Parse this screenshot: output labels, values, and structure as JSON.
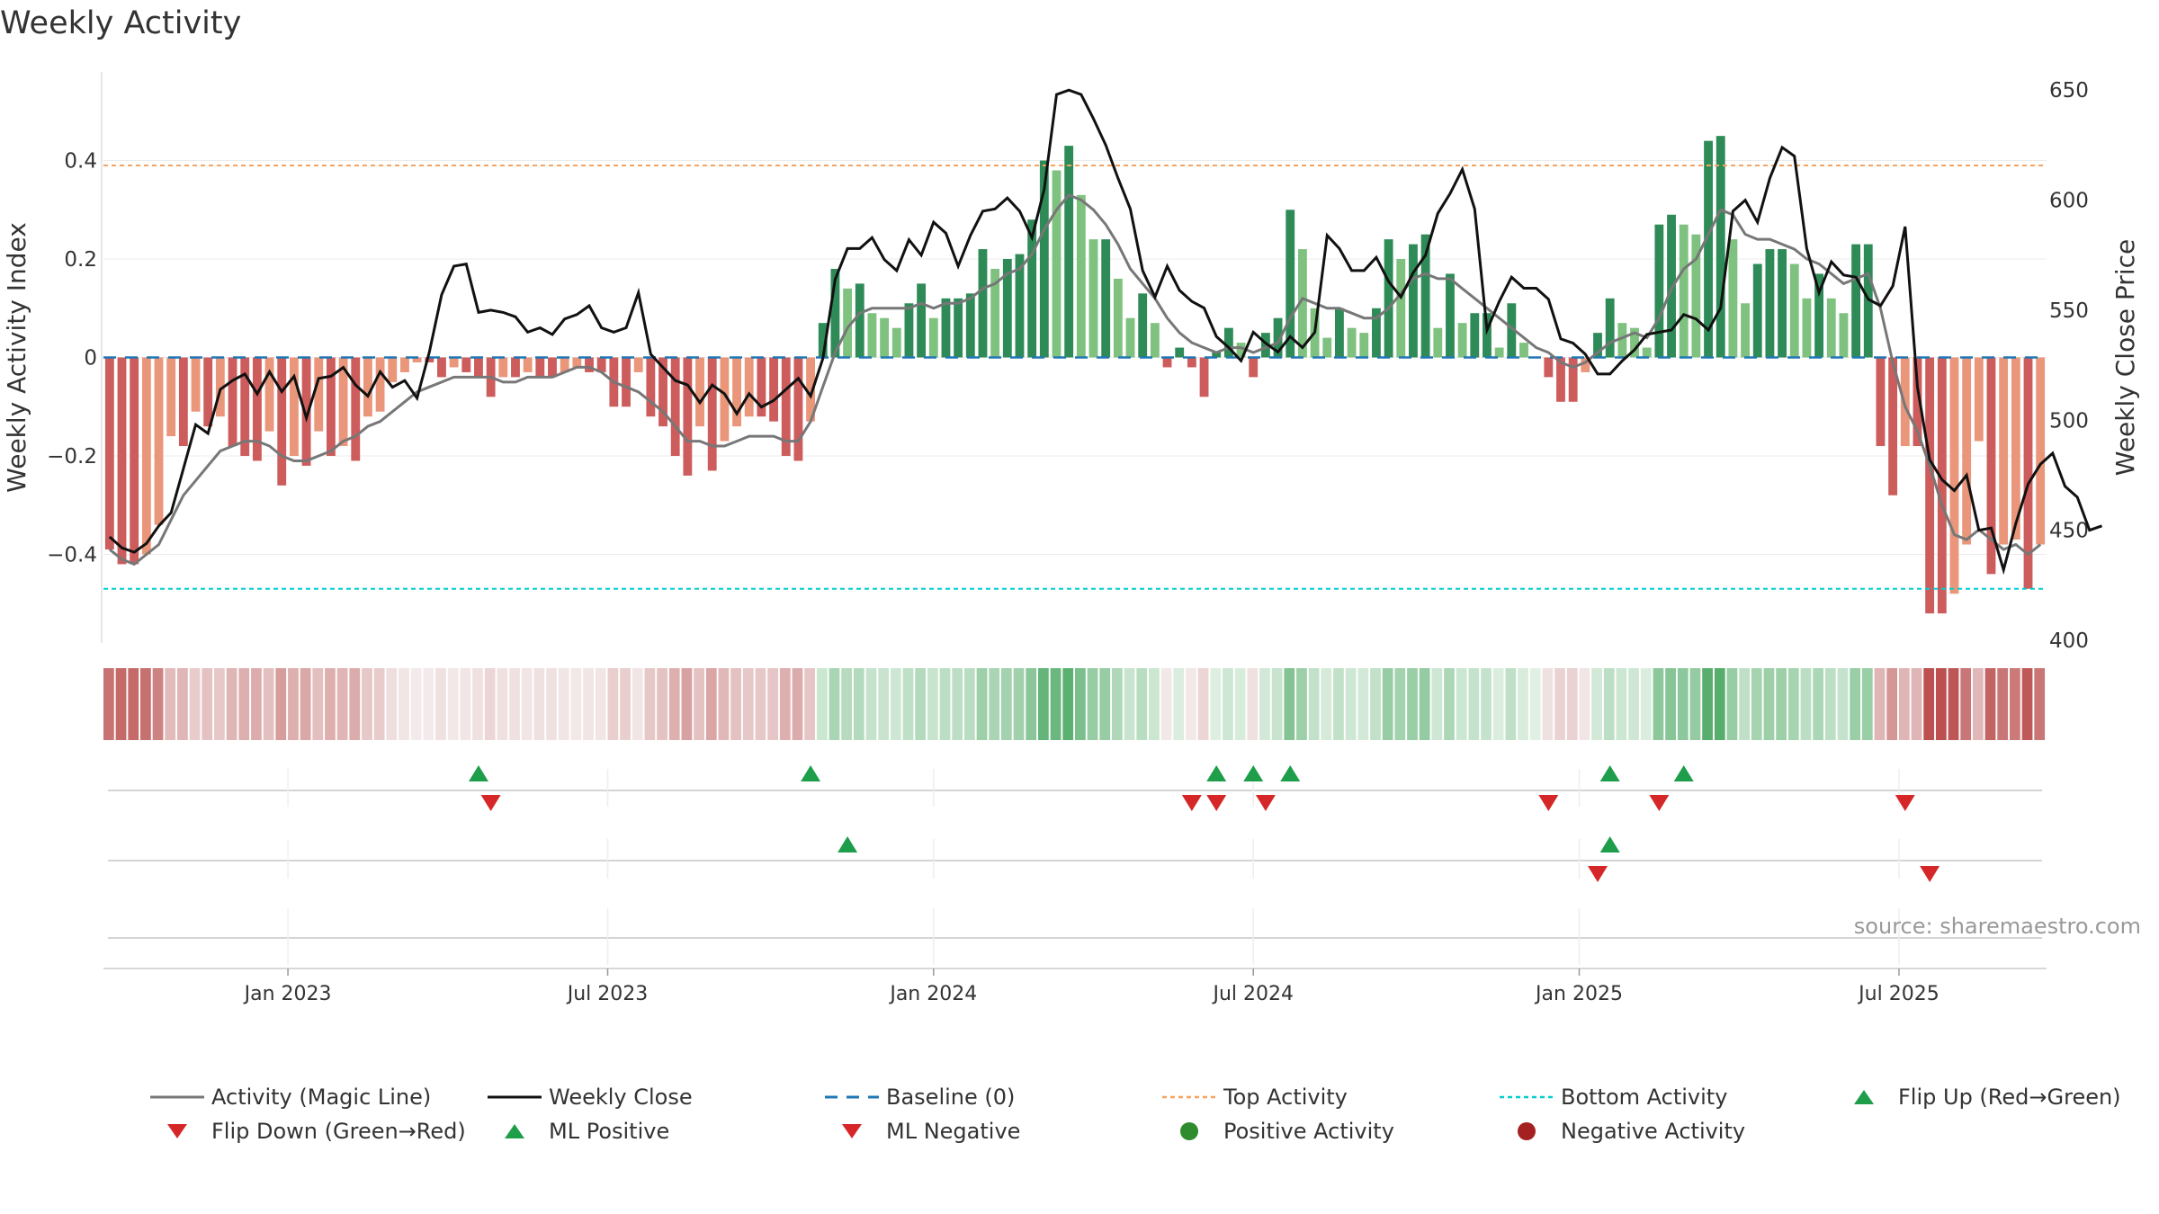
{
  "chart_data": {
    "type": "bar",
    "title": "Weekly Activity",
    "ylabel": "Weekly Activity Index",
    "y2label": "Weekly Close Price",
    "ylim": [
      -0.58,
      0.58
    ],
    "y2lim": [
      400,
      655
    ],
    "y_ticks": [
      {
        "v": -0.4,
        "label": "−0.4"
      },
      {
        "v": -0.2,
        "label": "−0.2"
      },
      {
        "v": 0,
        "label": "0"
      },
      {
        "v": 0.2,
        "label": "0.2"
      },
      {
        "v": 0.4,
        "label": "0.4"
      }
    ],
    "y2_ticks": [
      {
        "v": 400,
        "label": "400"
      },
      {
        "v": 450,
        "label": "450"
      },
      {
        "v": 500,
        "label": "500"
      },
      {
        "v": 550,
        "label": "550"
      },
      {
        "v": 600,
        "label": "600"
      },
      {
        "v": 650,
        "label": "650"
      }
    ],
    "x_ticks": [
      "Jan 2023",
      "Jul 2023",
      "Jan 2024",
      "Jul 2024",
      "Jan 2025",
      "Jul 2025"
    ],
    "x_tick_weeks": [
      15,
      41,
      67.5,
      93.5,
      120,
      146
    ],
    "top_activity": 0.39,
    "bottom_activity": -0.47,
    "baseline": 0,
    "activity": [
      -0.39,
      -0.42,
      -0.42,
      -0.4,
      -0.34,
      -0.16,
      -0.18,
      -0.11,
      -0.14,
      -0.12,
      -0.18,
      -0.2,
      -0.21,
      -0.15,
      -0.26,
      -0.2,
      -0.22,
      -0.15,
      -0.2,
      -0.18,
      -0.21,
      -0.12,
      -0.11,
      -0.05,
      -0.03,
      -0.01,
      -0.01,
      -0.04,
      -0.02,
      -0.03,
      -0.04,
      -0.08,
      -0.04,
      -0.04,
      -0.03,
      -0.04,
      -0.04,
      -0.03,
      -0.02,
      -0.03,
      -0.03,
      -0.1,
      -0.1,
      -0.03,
      -0.12,
      -0.14,
      -0.2,
      -0.24,
      -0.14,
      -0.23,
      -0.17,
      -0.14,
      -0.12,
      -0.12,
      -0.13,
      -0.2,
      -0.21,
      -0.13,
      0.07,
      0.18,
      0.14,
      0.15,
      0.09,
      0.08,
      0.06,
      0.11,
      0.15,
      0.08,
      0.12,
      0.12,
      0.13,
      0.22,
      0.18,
      0.2,
      0.21,
      0.28,
      0.4,
      0.38,
      0.43,
      0.33,
      0.24,
      0.24,
      0.16,
      0.08,
      0.13,
      0.07,
      -0.02,
      0.02,
      -0.02,
      -0.08,
      0.01,
      0.06,
      0.03,
      -0.04,
      0.05,
      0.08,
      0.3,
      0.22,
      0.1,
      0.04,
      0.1,
      0.06,
      0.05,
      0.1,
      0.24,
      0.2,
      0.23,
      0.25,
      0.06,
      0.17,
      0.07,
      0.09,
      0.09,
      0.02,
      0.11,
      0.03,
      0.0,
      -0.04,
      -0.09,
      -0.09,
      -0.03,
      0.05,
      0.12,
      0.07,
      0.06,
      0.02,
      0.27,
      0.29,
      0.27,
      0.25,
      0.44,
      0.45,
      0.24,
      0.11,
      0.19,
      0.22,
      0.22,
      0.19,
      0.12,
      0.17,
      0.12,
      0.09,
      0.23,
      0.23,
      -0.18,
      -0.28,
      -0.18,
      -0.18,
      -0.52,
      -0.52,
      -0.48,
      -0.38,
      -0.17,
      -0.44,
      -0.38,
      -0.37,
      -0.47,
      -0.38
    ],
    "magic_line": [
      -0.39,
      -0.41,
      -0.42,
      -0.4,
      -0.38,
      -0.33,
      -0.28,
      -0.25,
      -0.22,
      -0.19,
      -0.18,
      -0.17,
      -0.17,
      -0.18,
      -0.2,
      -0.21,
      -0.21,
      -0.2,
      -0.19,
      -0.17,
      -0.16,
      -0.14,
      -0.13,
      -0.11,
      -0.09,
      -0.07,
      -0.06,
      -0.05,
      -0.04,
      -0.04,
      -0.04,
      -0.04,
      -0.05,
      -0.05,
      -0.04,
      -0.04,
      -0.04,
      -0.03,
      -0.02,
      -0.02,
      -0.03,
      -0.05,
      -0.06,
      -0.07,
      -0.09,
      -0.11,
      -0.14,
      -0.17,
      -0.17,
      -0.18,
      -0.18,
      -0.17,
      -0.16,
      -0.16,
      -0.16,
      -0.17,
      -0.17,
      -0.13,
      -0.06,
      0.01,
      0.06,
      0.09,
      0.1,
      0.1,
      0.1,
      0.1,
      0.11,
      0.1,
      0.11,
      0.11,
      0.12,
      0.14,
      0.15,
      0.17,
      0.18,
      0.21,
      0.26,
      0.3,
      0.33,
      0.32,
      0.3,
      0.27,
      0.23,
      0.18,
      0.15,
      0.12,
      0.08,
      0.05,
      0.03,
      0.02,
      0.01,
      0.02,
      0.02,
      0.01,
      0.02,
      0.03,
      0.08,
      0.12,
      0.11,
      0.1,
      0.1,
      0.09,
      0.08,
      0.08,
      0.1,
      0.13,
      0.16,
      0.17,
      0.16,
      0.16,
      0.14,
      0.12,
      0.1,
      0.08,
      0.06,
      0.04,
      0.02,
      0.01,
      -0.01,
      -0.02,
      -0.01,
      0.01,
      0.03,
      0.04,
      0.05,
      0.04,
      0.08,
      0.14,
      0.18,
      0.2,
      0.25,
      0.3,
      0.29,
      0.25,
      0.24,
      0.24,
      0.23,
      0.22,
      0.2,
      0.19,
      0.17,
      0.15,
      0.16,
      0.17,
      0.1,
      -0.01,
      -0.1,
      -0.15,
      -0.22,
      -0.3,
      -0.36,
      -0.37,
      -0.35,
      -0.37,
      -0.39,
      -0.38,
      -0.4,
      -0.38
    ],
    "weekly_close": [
      447,
      442,
      440,
      444,
      452,
      458,
      478,
      498,
      494,
      514,
      518,
      521,
      512,
      522,
      513,
      520,
      501,
      519,
      520,
      524,
      516,
      511,
      522,
      515,
      518,
      510,
      531,
      557,
      570,
      571,
      549,
      550,
      549,
      547,
      540,
      542,
      539,
      546,
      548,
      552,
      542,
      540,
      542,
      558,
      530,
      524,
      518,
      516,
      508,
      516,
      512,
      503,
      512,
      506,
      509,
      514,
      519,
      511,
      528,
      564,
      578,
      578,
      583,
      573,
      568,
      582,
      575,
      590,
      585,
      570,
      584,
      595,
      596,
      601,
      595,
      583,
      605,
      648,
      650,
      648,
      637,
      625,
      610,
      596,
      568,
      556,
      570,
      559,
      554,
      551,
      538,
      533,
      527,
      540,
      535,
      531,
      538,
      533,
      540,
      584,
      578,
      568,
      568,
      574,
      563,
      556,
      567,
      575,
      594,
      603,
      614,
      596,
      541,
      554,
      565,
      560,
      560,
      555,
      537,
      535,
      530,
      521,
      521,
      527,
      532,
      539,
      540,
      541,
      548,
      546,
      541,
      551,
      595,
      600,
      590,
      610,
      624,
      620,
      578,
      558,
      572,
      566,
      565,
      555,
      552,
      561,
      588,
      515,
      482,
      473,
      468,
      475,
      450,
      451,
      432,
      453,
      471,
      480,
      485,
      470,
      465,
      450,
      452
    ],
    "flip_up": [
      30,
      57,
      90,
      93,
      96,
      122,
      128
    ],
    "flip_down": [
      31,
      88,
      90,
      94,
      117,
      126,
      146
    ],
    "ml_positive": [
      60,
      122
    ],
    "ml_negative": [
      121,
      148
    ],
    "colors": {
      "dark_green": "#2e8b57",
      "light_green": "#7fc17f",
      "dark_red": "#cd5c5c",
      "light_red": "#e9967a",
      "magic_line": "#777777",
      "weekly_close": "#111111",
      "baseline": "#1f77b4",
      "top_activity": "#f4a460",
      "bottom_activity": "#00ced1",
      "marker_up": "#1e9e4a",
      "marker_down": "#d62728"
    },
    "legend": [
      {
        "label": "Activity (Magic Line)",
        "symbol": "line-gray"
      },
      {
        "label": "Weekly Close",
        "symbol": "line-black"
      },
      {
        "label": "Baseline (0)",
        "symbol": "dash-blue"
      },
      {
        "label": "Top Activity",
        "symbol": "dot-orange"
      },
      {
        "label": "Bottom Activity",
        "symbol": "dot-cyan"
      },
      {
        "label": "Flip Up (Red→Green)",
        "symbol": "tri-up-green"
      },
      {
        "label": "Flip Down (Green→Red)",
        "symbol": "tri-down-red"
      },
      {
        "label": "ML Positive",
        "symbol": "tri-up-green"
      },
      {
        "label": "ML Negative",
        "symbol": "tri-down-red"
      },
      {
        "label": "Positive Activity",
        "symbol": "circle-green"
      },
      {
        "label": "Negative Activity",
        "symbol": "circle-darkred"
      }
    ],
    "source": "source: sharemaestro.com"
  }
}
